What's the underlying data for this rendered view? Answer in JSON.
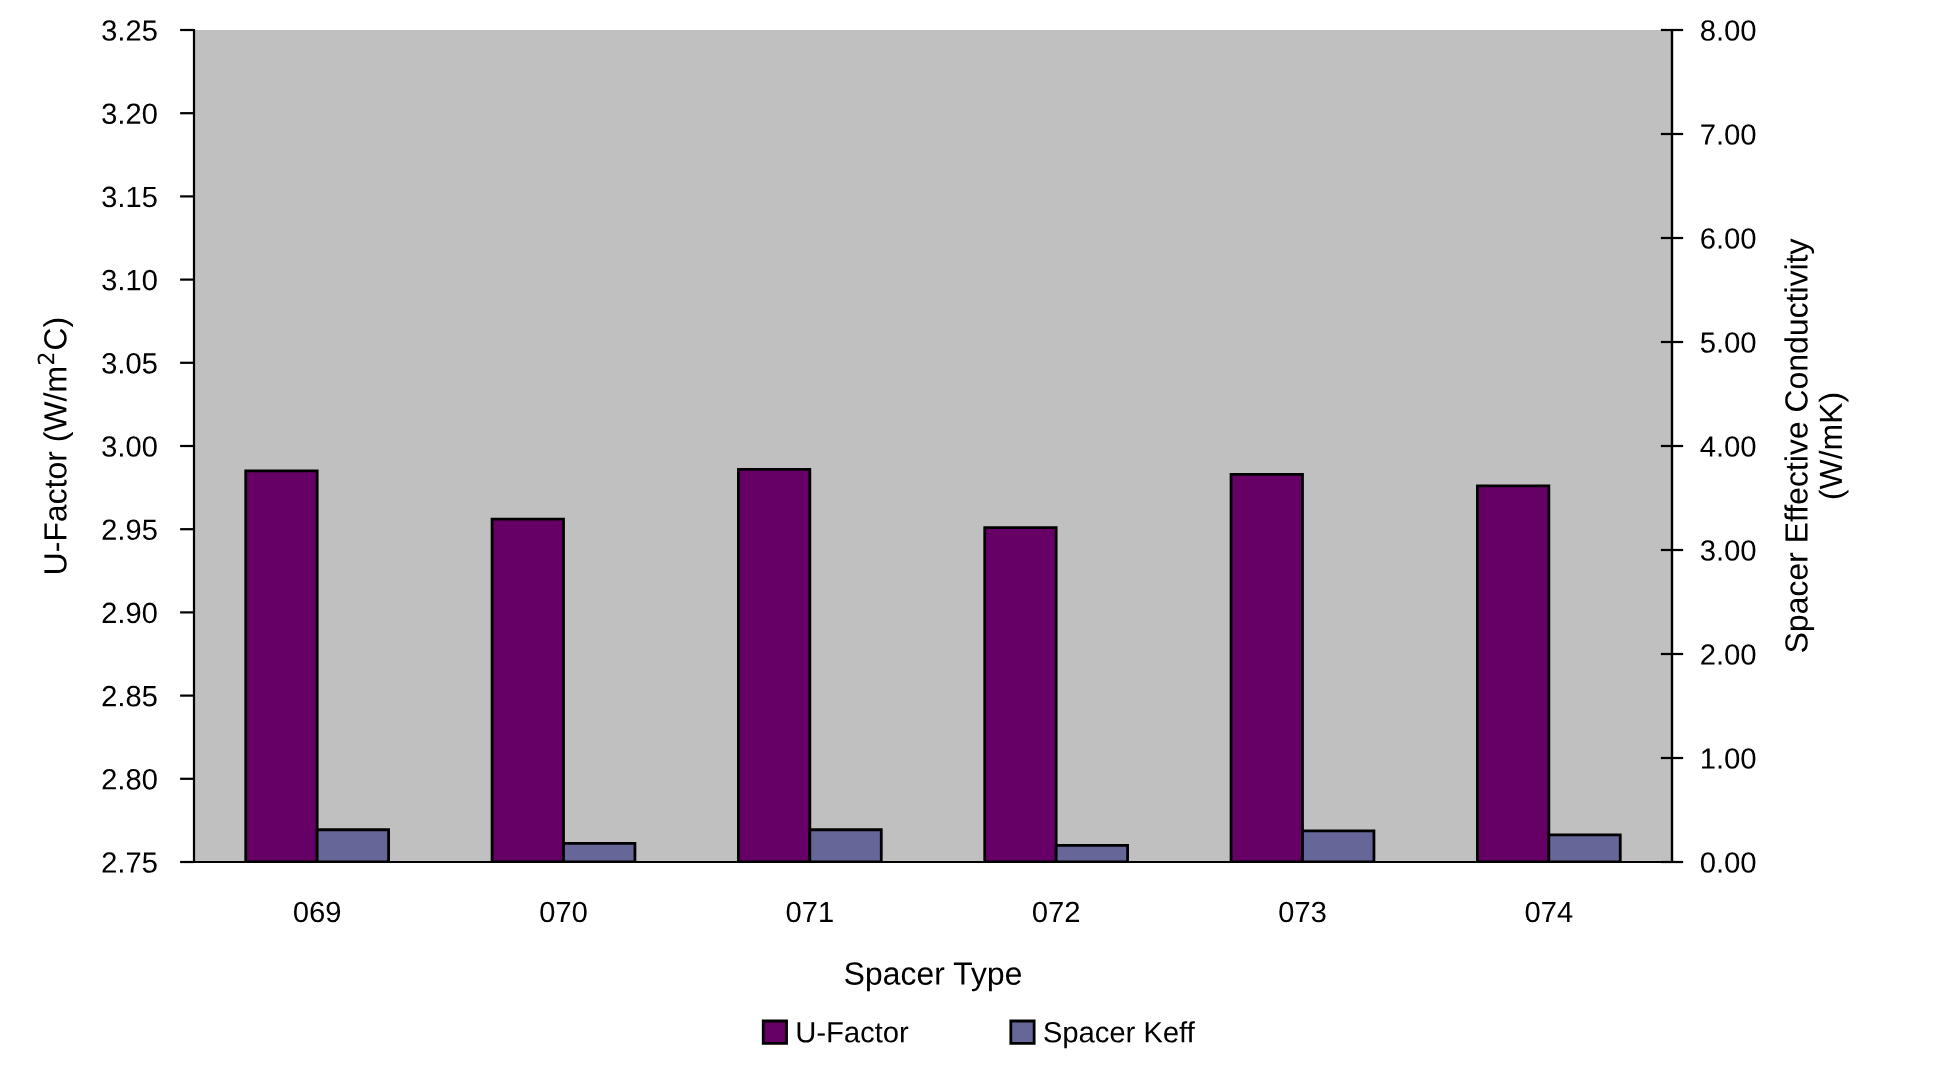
{
  "chart_data": {
    "type": "bar",
    "categories": [
      "069",
      "070",
      "071",
      "072",
      "073",
      "074"
    ],
    "series": [
      {
        "name": "U-Factor",
        "color": "#660066",
        "values": [
          2.985,
          2.956,
          2.986,
          2.951,
          2.983,
          2.976
        ]
      },
      {
        "name": "Spacer Keff",
        "color": "#666699",
        "axis": "y2",
        "values": [
          0.31,
          0.18,
          0.31,
          0.16,
          0.3,
          0.26
        ]
      }
    ],
    "xlabel": "Spacer Type",
    "ylabel": "U-Factor (W/m$^{2}$C)",
    "y2label": "Spacer Effective Conductivity\n(W/mK)",
    "ylim": [
      2.75,
      3.25
    ],
    "yticks": [
      {
        "value": 2.75,
        "label": "2.75"
      },
      {
        "value": 2.8,
        "label": "2.80"
      },
      {
        "value": 2.85,
        "label": "2.85"
      },
      {
        "value": 2.9,
        "label": "2.90"
      },
      {
        "value": 2.95,
        "label": "2.95"
      },
      {
        "value": 3.0,
        "label": "3.00"
      },
      {
        "value": 3.05,
        "label": "3.05"
      },
      {
        "value": 3.1,
        "label": "3.10"
      },
      {
        "value": 3.15,
        "label": "3.15"
      },
      {
        "value": 3.2,
        "label": "3.20"
      },
      {
        "value": 3.25,
        "label": "3.25"
      }
    ],
    "y2lim": [
      0,
      8
    ],
    "y2ticks": [
      {
        "value": 0,
        "label": "0.00"
      },
      {
        "value": 1,
        "label": "1.00"
      },
      {
        "value": 2,
        "label": "2.00"
      },
      {
        "value": 3,
        "label": "3.00"
      },
      {
        "value": 4,
        "label": "4.00"
      },
      {
        "value": 5,
        "label": "5.00"
      },
      {
        "value": 6,
        "label": "6.00"
      },
      {
        "value": 7,
        "label": "7.00"
      },
      {
        "value": 8,
        "label": "8.00"
      }
    ],
    "legend": "bottom"
  }
}
